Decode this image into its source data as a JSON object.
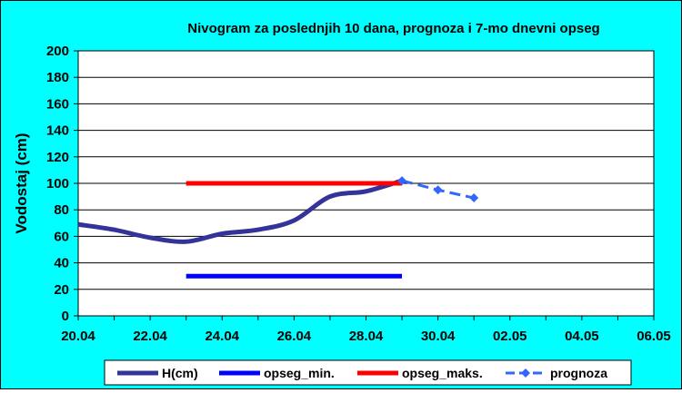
{
  "chart_data": {
    "type": "line",
    "title": "Nivogram za poslednjih 10 dana, prognoza i 7-mo dnevni opseg",
    "xlabel": "",
    "ylabel": "Vodostaj (cm)",
    "x_ticks": [
      "20.04",
      "22.04",
      "24.04",
      "26.04",
      "28.04",
      "30.04",
      "02.05",
      "04.05",
      "06.05"
    ],
    "xlim": [
      "20.04",
      "06.05"
    ],
    "ylim": [
      0,
      200
    ],
    "y_ticks": [
      0,
      20,
      40,
      60,
      80,
      100,
      120,
      140,
      160,
      180,
      200
    ],
    "grid": "horizontal",
    "legend_position": "bottom",
    "series": [
      {
        "name": "H(cm)",
        "color": "#333399",
        "style": "solid",
        "points": [
          {
            "x": "20.04",
            "y": 69
          },
          {
            "x": "21.04",
            "y": 65
          },
          {
            "x": "22.04",
            "y": 59
          },
          {
            "x": "23.04",
            "y": 56
          },
          {
            "x": "24.04",
            "y": 62
          },
          {
            "x": "25.04",
            "y": 65
          },
          {
            "x": "26.04",
            "y": 72
          },
          {
            "x": "27.04",
            "y": 90
          },
          {
            "x": "28.04",
            "y": 94
          },
          {
            "x": "29.04",
            "y": 102
          }
        ]
      },
      {
        "name": "opseg_min.",
        "color": "#0000ff",
        "style": "solid",
        "points": [
          {
            "x": "23.04",
            "y": 30
          },
          {
            "x": "29.04",
            "y": 30
          }
        ]
      },
      {
        "name": "opseg_maks.",
        "color": "#ff0000",
        "style": "solid",
        "points": [
          {
            "x": "23.04",
            "y": 100
          },
          {
            "x": "29.04",
            "y": 100
          }
        ]
      },
      {
        "name": "prognoza",
        "color": "#3366ff",
        "style": "dashed",
        "marker": "diamond",
        "points": [
          {
            "x": "29.04",
            "y": 102
          },
          {
            "x": "30.04",
            "y": 95
          },
          {
            "x": "01.05",
            "y": 89
          }
        ]
      }
    ]
  }
}
